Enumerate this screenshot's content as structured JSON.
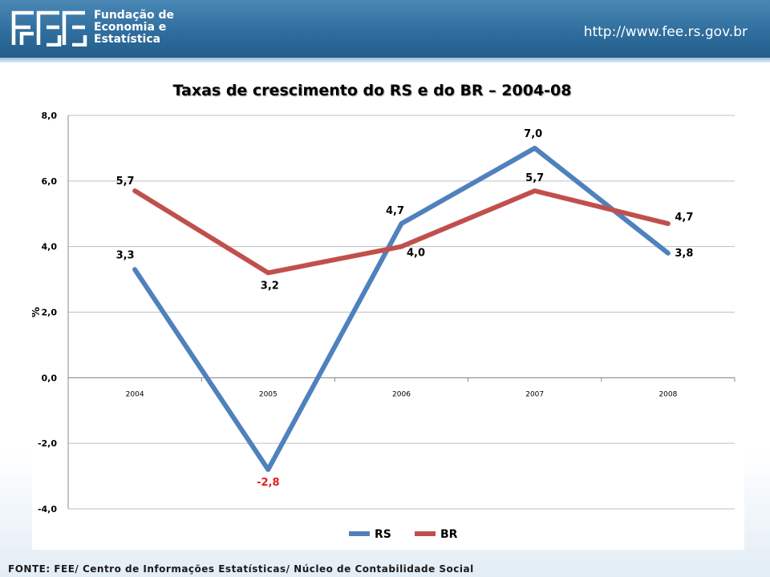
{
  "header": {
    "org_name_lines": [
      "Fundação de",
      "Economia e",
      "Estatística"
    ],
    "url": "http://www.fee.rs.gov.br",
    "brand_color": "#2f6e9e"
  },
  "footer": {
    "source": "FONTE: FEE/ Centro de Informações Estatísticas/ Núcleo de Contabilidade Social"
  },
  "chart_data": {
    "type": "line",
    "title": "Taxas de crescimento do RS  e do BR – 2004-08",
    "xlabel": "",
    "ylabel": "%",
    "ylim": [
      -4,
      8
    ],
    "yticks": [
      -4,
      -2,
      0,
      2,
      4,
      6,
      8
    ],
    "ytick_labels": [
      "-4,0",
      "-2,0",
      "0,0",
      "2,0",
      "4,0",
      "6,0",
      "8,0"
    ],
    "categories": [
      "2004",
      "2005",
      "2006",
      "2007",
      "2008"
    ],
    "grid": true,
    "legend_placement": "bottom",
    "series": [
      {
        "name": "RS",
        "color": "#4f81bd",
        "values": [
          3.3,
          -2.8,
          4.7,
          7.0,
          3.8
        ],
        "labels": [
          "3,3",
          "-2,8",
          "4,7",
          "7,0",
          "3,8"
        ],
        "label_colors": [
          "#000000",
          "#e0201b",
          "#000000",
          "#000000",
          "#000000"
        ]
      },
      {
        "name": "BR",
        "color": "#c0504d",
        "values": [
          5.7,
          3.2,
          4.0,
          5.7,
          4.7
        ],
        "labels": [
          "5,7",
          "3,2",
          "4,0",
          "5,7",
          "4,7"
        ],
        "label_colors": [
          "#000000",
          "#000000",
          "#000000",
          "#000000",
          "#000000"
        ]
      }
    ]
  }
}
